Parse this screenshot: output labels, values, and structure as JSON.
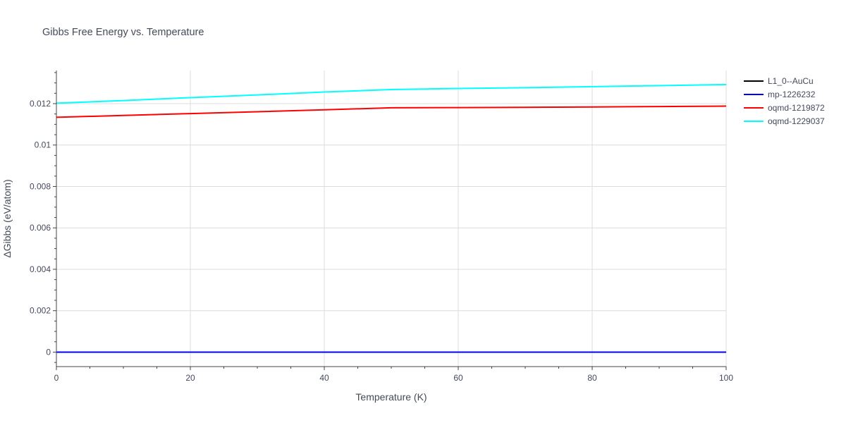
{
  "chart_data": {
    "type": "line",
    "title": "Gibbs Free Energy vs. Temperature",
    "xlabel": "Temperature (K)",
    "ylabel": "ΔGibbs (eV/atom)",
    "xlim": [
      0,
      100
    ],
    "ylim": [
      -0.0007,
      0.0136
    ],
    "x_ticks": [
      0,
      20,
      40,
      60,
      80,
      100
    ],
    "x_tick_labels": [
      "0",
      "20",
      "40",
      "60",
      "80",
      "100"
    ],
    "y_ticks": [
      0,
      0.002,
      0.004,
      0.006,
      0.008,
      0.01,
      0.012
    ],
    "y_tick_labels": [
      "0",
      "0.002",
      "0.004",
      "0.006",
      "0.008",
      "0.01",
      "0.012"
    ],
    "grid": true,
    "legend_position": "right",
    "series": [
      {
        "name": "L1_0--AuCu",
        "color": "#000000",
        "x": [
          0,
          10,
          20,
          30,
          40,
          50,
          60,
          70,
          80,
          90,
          100
        ],
        "y": [
          0,
          0,
          0,
          0,
          0,
          0,
          0,
          0,
          0,
          0,
          0
        ]
      },
      {
        "name": "mp-1226232",
        "color": "#0000ff",
        "x": [
          0,
          10,
          20,
          30,
          40,
          50,
          60,
          70,
          80,
          90,
          100
        ],
        "y": [
          0,
          0,
          0,
          0,
          0,
          0,
          0,
          0,
          0,
          0,
          0
        ]
      },
      {
        "name": "oqmd-1219872",
        "color": "#ff0000",
        "x": [
          0,
          10,
          20,
          30,
          40,
          50,
          60,
          70,
          80,
          90,
          100
        ],
        "y": [
          0.01134,
          0.01143,
          0.01152,
          0.01161,
          0.0117,
          0.0118,
          0.01181,
          0.01182,
          0.01184,
          0.01186,
          0.01188
        ]
      },
      {
        "name": "oqmd-1229037",
        "color": "#00ffff",
        "x": [
          0,
          10,
          20,
          30,
          40,
          50,
          60,
          70,
          80,
          90,
          100
        ],
        "y": [
          0.01202,
          0.01215,
          0.01229,
          0.01242,
          0.01256,
          0.01268,
          0.01273,
          0.01277,
          0.01282,
          0.01287,
          0.01292
        ]
      }
    ]
  }
}
